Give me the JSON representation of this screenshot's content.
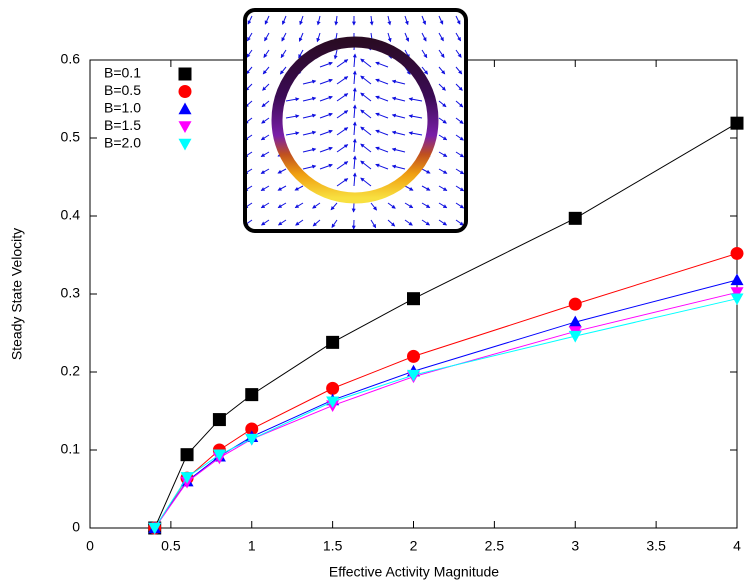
{
  "chart_data": {
    "type": "line",
    "xlabel": "Effective Activity Magnitude",
    "ylabel": "Steady State Velocity",
    "x": [
      0.4,
      0.6,
      0.8,
      1.0,
      1.5,
      2,
      3,
      4
    ],
    "series": [
      {
        "name": "B=0.1",
        "color": "#000000",
        "marker": "square",
        "values": [
          0,
          0.094,
          0.139,
          0.171,
          0.238,
          0.294,
          0.397,
          0.519
        ]
      },
      {
        "name": "B=0.5",
        "color": "#ff0000",
        "marker": "circle",
        "values": [
          0,
          0.064,
          0.1,
          0.127,
          0.179,
          0.22,
          0.287,
          0.352
        ]
      },
      {
        "name": "B=1.0",
        "color": "#0000ff",
        "marker": "triangle-up",
        "values": [
          0,
          0.06,
          0.092,
          0.117,
          0.164,
          0.201,
          0.264,
          0.318
        ]
      },
      {
        "name": "B=1.5",
        "color": "#ff00ff",
        "marker": "triangle-down",
        "values": [
          0,
          0.059,
          0.09,
          0.114,
          0.157,
          0.194,
          0.252,
          0.302
        ]
      },
      {
        "name": "B=2.0",
        "color": "#00ffff",
        "marker": "triangle-down",
        "values": [
          0,
          0.065,
          0.094,
          0.114,
          0.162,
          0.196,
          0.246,
          0.294
        ]
      }
    ],
    "xlim": [
      0,
      4
    ],
    "xticks": [
      0,
      0.5,
      1,
      1.5,
      2,
      2.5,
      3,
      3.5,
      4
    ],
    "ylim": [
      0,
      0.6
    ],
    "yticks": [
      0,
      0.1,
      0.2,
      0.3,
      0.4,
      0.5,
      0.6
    ],
    "grid": false,
    "legend": "top-left"
  }
}
